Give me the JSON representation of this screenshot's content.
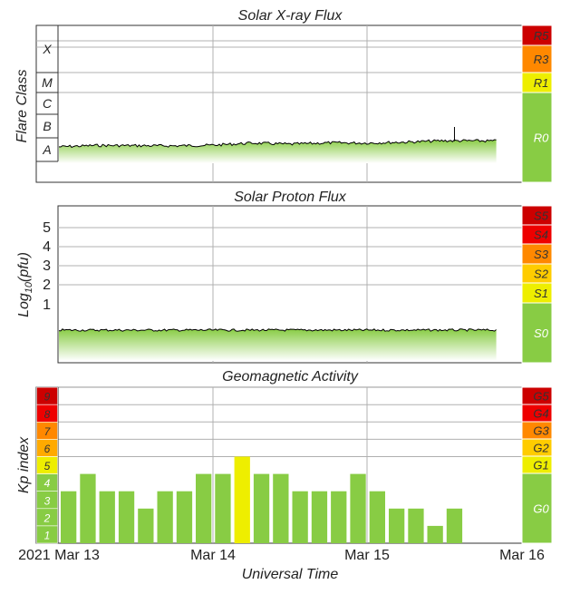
{
  "xray": {
    "title": "Solar X-ray Flux",
    "ylabel": "Flare Class",
    "classes": [
      "X",
      "M",
      "C",
      "B",
      "A"
    ],
    "scale": [
      {
        "label": "R5",
        "color": "#cc0000"
      },
      {
        "label": "R3",
        "color": "#ff8800"
      },
      {
        "label": "R1",
        "color": "#eeee00"
      },
      {
        "label": "R0",
        "color": "#88cc44"
      }
    ]
  },
  "proton": {
    "title": "Solar Proton Flux",
    "ylabel_main": "Log",
    "ylabel_sub": "10",
    "ylabel_tail": "(pfu)",
    "ticks": [
      "5",
      "4",
      "3",
      "2",
      "1"
    ],
    "scale": [
      {
        "label": "S5",
        "color": "#cc0000"
      },
      {
        "label": "S4",
        "color": "#ee0000"
      },
      {
        "label": "S3",
        "color": "#ff8800"
      },
      {
        "label": "S2",
        "color": "#ffcc00"
      },
      {
        "label": "S1",
        "color": "#eeee00"
      },
      {
        "label": "S0",
        "color": "#88cc44"
      }
    ]
  },
  "geomag": {
    "title": "Geomagnetic Activity",
    "ylabel": "Kp index",
    "kp_levels": [
      {
        "label": "9",
        "color": "#cc0000"
      },
      {
        "label": "8",
        "color": "#ee0000"
      },
      {
        "label": "7",
        "color": "#ff8800"
      },
      {
        "label": "6",
        "color": "#ffaa00"
      },
      {
        "label": "5",
        "color": "#eeee00"
      },
      {
        "label": "4",
        "color": "#88cc44"
      },
      {
        "label": "3",
        "color": "#88cc44"
      },
      {
        "label": "2",
        "color": "#88cc44"
      },
      {
        "label": "1",
        "color": "#88cc44"
      }
    ],
    "scale": [
      {
        "label": "G5",
        "color": "#cc0000"
      },
      {
        "label": "G4",
        "color": "#ee0000"
      },
      {
        "label": "G3",
        "color": "#ff8800"
      },
      {
        "label": "G2",
        "color": "#ffcc00"
      },
      {
        "label": "G1",
        "color": "#eeee00"
      },
      {
        "label": "G0",
        "color": "#88cc44"
      }
    ]
  },
  "xaxis": {
    "label": "Universal Time",
    "ticks": [
      "2021 Mar 13",
      "Mar 14",
      "Mar 15",
      "Mar 16"
    ]
  },
  "colors": {
    "green": "#88cc44",
    "yellow": "#eeee00",
    "grid": "#b0b0b0",
    "trace": "#000000"
  },
  "chart_data": [
    {
      "type": "area",
      "title": "Solar X-ray Flux",
      "ylabel": "Flare Class",
      "x_range": [
        "2021-03-13",
        "2021-03-16"
      ],
      "y_scale": "log",
      "y_categories": [
        "A",
        "B",
        "C",
        "M",
        "X"
      ],
      "level_estimate": "A",
      "x": [
        "2021-03-13 00:00",
        "2021-03-13 06:00",
        "2021-03-13 12:00",
        "2021-03-13 18:00",
        "2021-03-14 00:00",
        "2021-03-14 06:00",
        "2021-03-14 12:00",
        "2021-03-14 18:00",
        "2021-03-15 00:00",
        "2021-03-15 06:00",
        "2021-03-15 12:00",
        "2021-03-15 18:00",
        "2021-03-16 00:00"
      ],
      "class_level": [
        0.62,
        0.68,
        0.67,
        0.66,
        0.69,
        0.78,
        0.73,
        0.79,
        0.78,
        0.82,
        0.88,
        0.87,
        null
      ]
    },
    {
      "type": "area",
      "title": "Solar Proton Flux",
      "ylabel": "Log10(pfu)",
      "x_range": [
        "2021-03-13",
        "2021-03-16"
      ],
      "y_ticks": [
        1,
        2,
        3,
        4,
        5
      ],
      "x": [
        "2021-03-13 00:00",
        "2021-03-14 00:00",
        "2021-03-15 00:00",
        "2021-03-16 00:00"
      ],
      "log10_pfu": [
        -0.3,
        -0.3,
        -0.3,
        null
      ]
    },
    {
      "type": "bar",
      "title": "Geomagnetic Activity",
      "ylabel": "Kp index",
      "xlabel": "Universal Time",
      "ylim": [
        0,
        9
      ],
      "x_range": [
        "2021-03-13",
        "2021-03-16"
      ],
      "interval_hours": 3,
      "values": [
        3,
        4,
        3,
        3,
        2,
        3,
        3,
        4,
        4,
        5,
        4,
        4,
        3,
        3,
        3,
        4,
        3,
        2,
        2,
        1,
        2
      ],
      "highlight_color_threshold": 5
    }
  ]
}
